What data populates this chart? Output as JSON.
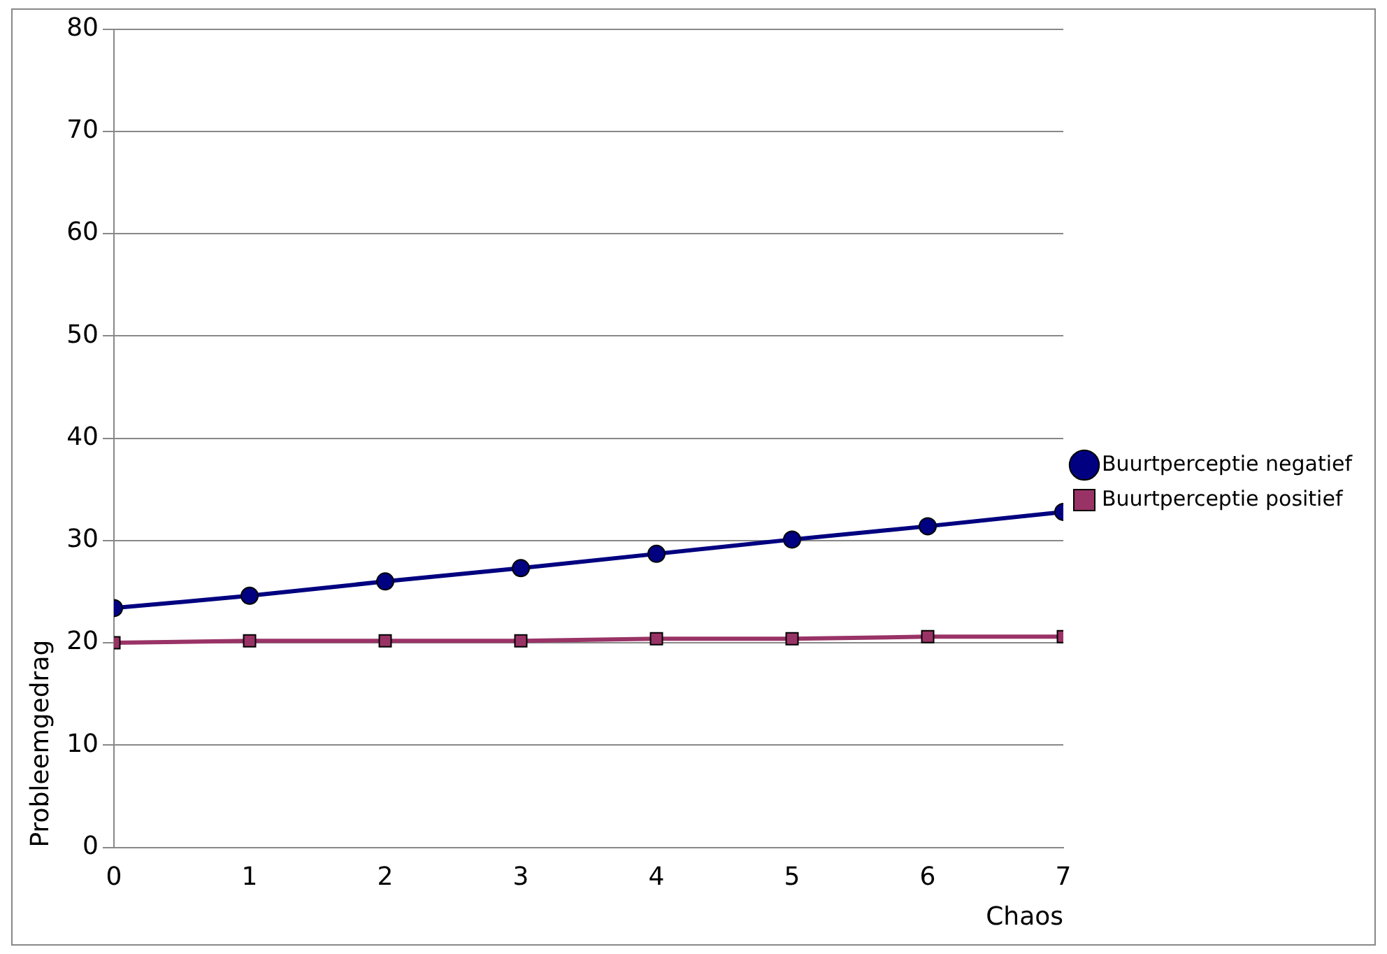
{
  "chart_data": {
    "type": "line",
    "xlabel": "Chaos",
    "ylabel": "Probleemgedrag",
    "x": [
      0,
      1,
      2,
      3,
      4,
      5,
      6,
      7
    ],
    "series": [
      {
        "name": "Buurtperceptie negatief",
        "color": "#000080",
        "marker": "circle",
        "values": [
          23.4,
          24.6,
          26.0,
          27.3,
          28.7,
          30.1,
          31.4,
          32.8
        ]
      },
      {
        "name": "Buurtperceptie positief",
        "color": "#993366",
        "marker": "square",
        "values": [
          20.0,
          20.2,
          20.2,
          20.2,
          20.4,
          20.4,
          20.6,
          20.6
        ]
      }
    ],
    "xlim": [
      0,
      7
    ],
    "xticks": [
      0,
      1,
      2,
      3,
      4,
      5,
      6,
      7
    ],
    "ylim": [
      0,
      80
    ],
    "yticks": [
      0,
      10,
      20,
      30,
      40,
      50,
      60,
      70,
      80
    ],
    "grid": "y",
    "legend": "right"
  }
}
